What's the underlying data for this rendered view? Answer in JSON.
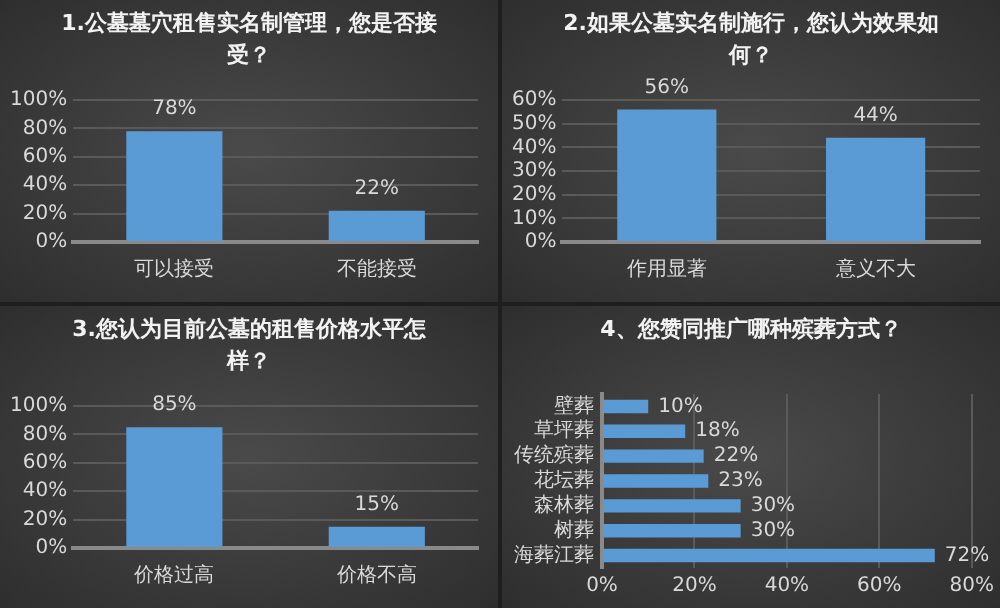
{
  "chart_data": [
    {
      "type": "bar",
      "title": "1.公墓墓穴租售实名制管理，您是否接受？",
      "categories": [
        "可以接受",
        "不能接受"
      ],
      "values": [
        78,
        22
      ],
      "value_labels": [
        "78%",
        "22%"
      ],
      "color": "#5b9bd5",
      "ylim": [
        0,
        100
      ],
      "yticks": [
        {
          "value": 0,
          "label": "0%"
        },
        {
          "value": 20,
          "label": "20%"
        },
        {
          "value": 40,
          "label": "40%"
        },
        {
          "value": 60,
          "label": "60%"
        },
        {
          "value": 80,
          "label": "80%"
        },
        {
          "value": 100,
          "label": "100%"
        }
      ],
      "grid": "y"
    },
    {
      "type": "bar",
      "title": "2.如果公墓实名制施行，您认为效果如何？",
      "categories": [
        "作用显著",
        "意义不大"
      ],
      "values": [
        56,
        44
      ],
      "value_labels": [
        "56%",
        "44%"
      ],
      "color": "#5b9bd5",
      "ylim": [
        0,
        60
      ],
      "yticks": [
        {
          "value": 0,
          "label": "0%"
        },
        {
          "value": 10,
          "label": "10%"
        },
        {
          "value": 20,
          "label": "20%"
        },
        {
          "value": 30,
          "label": "30%"
        },
        {
          "value": 40,
          "label": "40%"
        },
        {
          "value": 50,
          "label": "50%"
        },
        {
          "value": 60,
          "label": "60%"
        }
      ],
      "grid": "y"
    },
    {
      "type": "bar",
      "title": "3.您认为目前公墓的租售价格水平怎样？",
      "categories": [
        "价格过高",
        "价格不高"
      ],
      "values": [
        85,
        15
      ],
      "value_labels": [
        "85%",
        "15%"
      ],
      "color": "#5b9bd5",
      "ylim": [
        0,
        100
      ],
      "yticks": [
        {
          "value": 0,
          "label": "0%"
        },
        {
          "value": 20,
          "label": "20%"
        },
        {
          "value": 40,
          "label": "40%"
        },
        {
          "value": 60,
          "label": "60%"
        },
        {
          "value": 80,
          "label": "80%"
        },
        {
          "value": 100,
          "label": "100%"
        }
      ],
      "grid": "y"
    },
    {
      "type": "bar",
      "orientation": "horizontal",
      "title": "4、您赞同推广哪种殡葬方式？",
      "categories": [
        "壁葬",
        "草坪葬",
        "传统殡葬",
        "花坛葬",
        "森林葬",
        "树葬",
        "海葬江葬"
      ],
      "values": [
        10,
        18,
        22,
        23,
        30,
        30,
        72
      ],
      "value_labels": [
        "10%",
        "18%",
        "22%",
        "23%",
        "30%",
        "30%",
        "72%"
      ],
      "color": "#5b9bd5",
      "xlim": [
        0,
        80
      ],
      "xticks": [
        {
          "value": 0,
          "label": "0%"
        },
        {
          "value": 20,
          "label": "20%"
        },
        {
          "value": 40,
          "label": "40%"
        },
        {
          "value": 60,
          "label": "60%"
        },
        {
          "value": 80,
          "label": "80%"
        }
      ],
      "grid": "x"
    }
  ]
}
